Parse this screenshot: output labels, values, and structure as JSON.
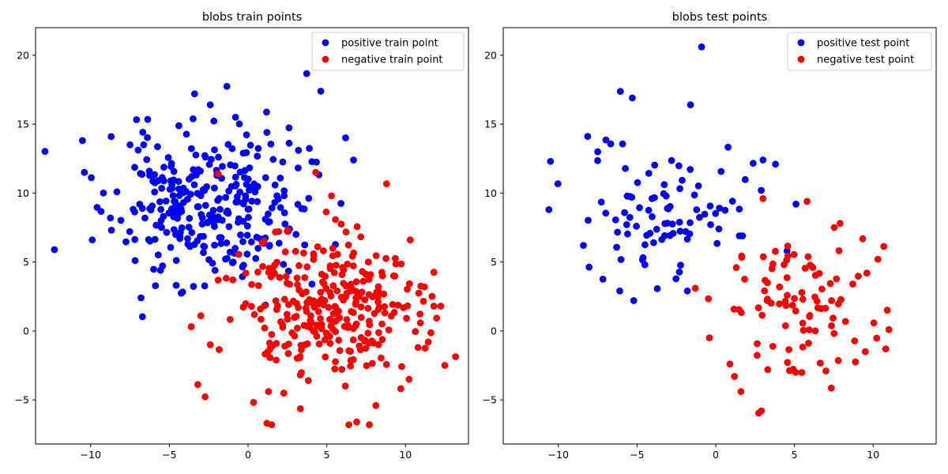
{
  "chart_data": [
    {
      "type": "scatter",
      "title": "blobs train points",
      "xlabel": "",
      "ylabel": "",
      "xlim": [
        -13.5,
        14
      ],
      "ylim": [
        -8.2,
        22
      ],
      "xticks": [
        -10,
        -5,
        0,
        5,
        10
      ],
      "yticks": [
        -5,
        0,
        5,
        10,
        15,
        20
      ],
      "grid": false,
      "legend_position": "top-right",
      "series": [
        {
          "name": "positive train point",
          "color": "#0000ff",
          "generated": {
            "n": 300,
            "center": [
              -2.5,
              9.0
            ],
            "spread": [
              3.0,
              2.8
            ],
            "seed": 11
          },
          "points": [
            [
              -12.3,
              5.9
            ],
            [
              -10.4,
              11.5
            ],
            [
              -9.9,
              6.6
            ],
            [
              -8.7,
              14.1
            ],
            [
              -7.5,
              13.5
            ],
            [
              -6.8,
              2.4
            ],
            [
              -3.4,
              17.2
            ],
            [
              -2.4,
              16.4
            ],
            [
              -0.8,
              15.5
            ],
            [
              1.2,
              14.4
            ],
            [
              6.7,
              12.4
            ],
            [
              3.2,
              13.1
            ]
          ]
        },
        {
          "name": "negative train point",
          "color": "#ff0000",
          "generated": {
            "n": 300,
            "center": [
              5.0,
              1.5
            ],
            "spread": [
              3.0,
              2.8
            ],
            "seed": 23
          },
          "points": [
            [
              12.5,
              -2.5
            ],
            [
              11.8,
              1.8
            ],
            [
              11.2,
              3.2
            ],
            [
              10.8,
              -1.2
            ],
            [
              10.3,
              6.6
            ],
            [
              7.7,
              -6.8
            ],
            [
              6.9,
              -6.6
            ],
            [
              6.4,
              -6.8
            ],
            [
              1.5,
              -6.8
            ],
            [
              1.2,
              -6.7
            ],
            [
              1.3,
              -4.4
            ],
            [
              4.3,
              11.5
            ],
            [
              5.3,
              9.8
            ],
            [
              -2.4,
              -1.0
            ],
            [
              -3.0,
              1.1
            ],
            [
              -1.9,
              11.4
            ]
          ]
        }
      ]
    },
    {
      "type": "scatter",
      "title": "blobs test points",
      "xlabel": "",
      "ylabel": "",
      "xlim": [
        -13.5,
        14
      ],
      "ylim": [
        -8.2,
        22
      ],
      "xticks": [
        -10,
        -5,
        0,
        5,
        10
      ],
      "yticks": [
        -5,
        0,
        5,
        10,
        15,
        20
      ],
      "grid": false,
      "legend_position": "top-right",
      "series": [
        {
          "name": "positive test point",
          "color": "#0000ff",
          "generated": {
            "n": 90,
            "center": [
              -3.0,
              9.0
            ],
            "spread": [
              2.6,
              2.7
            ],
            "seed": 37
          },
          "points": [
            [
              -10.6,
              8.8
            ],
            [
              -10.5,
              12.3
            ],
            [
              -7.5,
              13.0
            ],
            [
              -6.1,
              2.9
            ],
            [
              -5.3,
              16.9
            ],
            [
              -1.6,
              16.4
            ],
            [
              -0.9,
              20.6
            ],
            [
              -1.8,
              2.9
            ],
            [
              0.2,
              7.4
            ],
            [
              3.0,
              12.4
            ],
            [
              3.8,
              12.1
            ],
            [
              5.1,
              9.2
            ],
            [
              1.5,
              6.9
            ],
            [
              -4.5,
              4.8
            ]
          ]
        },
        {
          "name": "negative test point",
          "color": "#ff0000",
          "generated": {
            "n": 90,
            "center": [
              5.0,
              1.5
            ],
            "spread": [
              2.5,
              2.6
            ],
            "seed": 53
          },
          "points": [
            [
              2.9,
              -5.8
            ],
            [
              1.6,
              -4.4
            ],
            [
              3.3,
              -2.8
            ],
            [
              7.0,
              -2.9
            ],
            [
              9.5,
              -1.5
            ],
            [
              10.8,
              -1.3
            ],
            [
              11.0,
              0.1
            ],
            [
              10.9,
              1.5
            ],
            [
              9.6,
              4.2
            ],
            [
              10.3,
              5.2
            ],
            [
              7.9,
              7.8
            ],
            [
              5.8,
              9.4
            ],
            [
              3.0,
              9.6
            ],
            [
              -1.3,
              3.1
            ],
            [
              -0.4,
              -0.5
            ],
            [
              0.9,
              -2.4
            ]
          ]
        }
      ]
    }
  ]
}
